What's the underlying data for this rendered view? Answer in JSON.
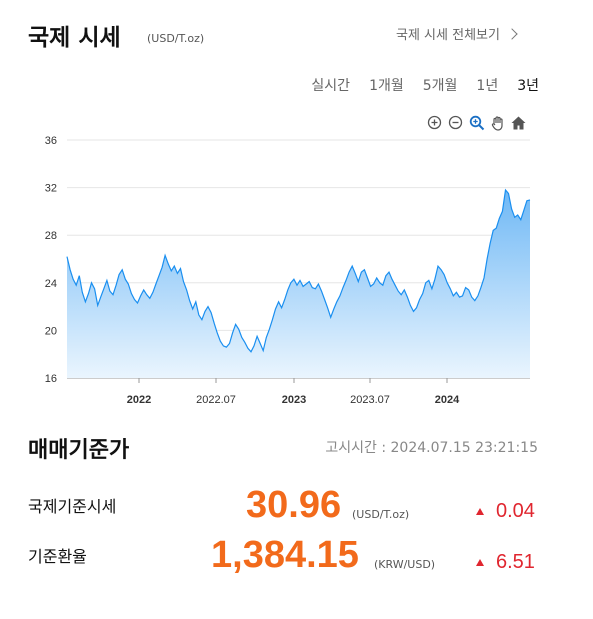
{
  "header": {
    "title": "국제 시세",
    "unit": "(USD/T.oz)",
    "view_all": "국제 시세 전체보기"
  },
  "period_tabs": [
    {
      "label": "실시간",
      "active": false
    },
    {
      "label": "1개월",
      "active": false
    },
    {
      "label": "5개월",
      "active": false
    },
    {
      "label": "1년",
      "active": false
    },
    {
      "label": "3년",
      "active": true
    }
  ],
  "toolbar": {
    "icons": [
      "zoom-in-icon",
      "zoom-out-icon",
      "magnify-icon",
      "pan-hand-icon",
      "home-icon"
    ]
  },
  "chart_data": {
    "type": "area",
    "y_ticks": [
      16,
      20,
      24,
      28,
      32,
      36
    ],
    "ylim": [
      16,
      36
    ],
    "x_ticks": [
      "2022",
      "2022.07",
      "2023",
      "2023.07",
      "2024"
    ],
    "grid": true,
    "colors": {
      "line": "#1a8ff0",
      "fill_top": "#6fb8f5",
      "fill_bottom": "#eaf5fe"
    },
    "series": [
      {
        "values": [
          26.2,
          25.1,
          24.3,
          23.8,
          24.6,
          23.2,
          22.4,
          23.1,
          24.0,
          23.5,
          22.1,
          22.8,
          23.5,
          24.2,
          23.3,
          23.0,
          23.8,
          24.7,
          25.1,
          24.3,
          23.9,
          23.1,
          22.6,
          22.3,
          22.9,
          23.4,
          23.0,
          22.7,
          23.2,
          23.9,
          24.6,
          25.3,
          26.3,
          25.6,
          25.0,
          25.4,
          24.8,
          25.2,
          24.1,
          23.4,
          22.5,
          21.8,
          22.4,
          21.3,
          20.9,
          21.6,
          22.0,
          21.5,
          20.6,
          19.8,
          19.1,
          18.7,
          18.6,
          18.9,
          19.8,
          20.5,
          20.1,
          19.4,
          19.0,
          18.5,
          18.2,
          18.7,
          19.5,
          18.9,
          18.3,
          19.4,
          20.1,
          20.9,
          21.8,
          22.4,
          21.9,
          22.6,
          23.4,
          24.0,
          24.3,
          23.8,
          24.2,
          23.7,
          23.9,
          24.1,
          23.6,
          23.5,
          23.9,
          23.3,
          22.6,
          21.9,
          21.1,
          21.8,
          22.4,
          22.9,
          23.6,
          24.2,
          24.9,
          25.4,
          24.8,
          24.1,
          24.9,
          25.1,
          24.4,
          23.7,
          23.9,
          24.4,
          24.0,
          23.8,
          24.6,
          24.9,
          24.3,
          23.8,
          23.3,
          23.0,
          23.4,
          22.8,
          22.1,
          21.6,
          21.9,
          22.6,
          23.1,
          24.0,
          24.2,
          23.5,
          24.3,
          25.4,
          25.1,
          24.7,
          24.0,
          23.5,
          22.9,
          23.2,
          22.8,
          22.9,
          23.6,
          23.4,
          22.8,
          22.5,
          22.9,
          23.6,
          24.4,
          26.0,
          27.3,
          28.4,
          28.6,
          29.4,
          30.0,
          31.8,
          31.5,
          30.2,
          29.5,
          29.7,
          29.3,
          30.1,
          30.9,
          30.96
        ]
      }
    ]
  },
  "basis": {
    "title": "매매기준가",
    "notice_time": "고시시간 : 2024.07.15 23:21:15",
    "rows": [
      {
        "label": "국제기준시세",
        "value": "30.96",
        "unit": "(USD/T.oz)",
        "change": "0.04",
        "direction": "up"
      },
      {
        "label": "기준환율",
        "value": "1,384.15",
        "unit": "(KRW/USD)",
        "change": "6.51",
        "direction": "up"
      }
    ]
  }
}
